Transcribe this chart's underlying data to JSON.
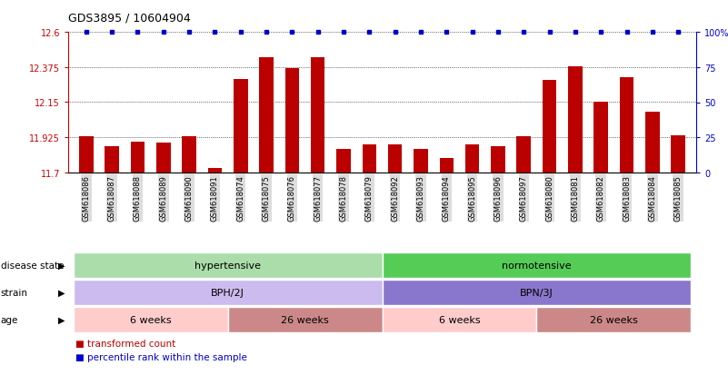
{
  "title": "GDS3895 / 10604904",
  "samples": [
    "GSM618086",
    "GSM618087",
    "GSM618088",
    "GSM618089",
    "GSM618090",
    "GSM618091",
    "GSM618074",
    "GSM618075",
    "GSM618076",
    "GSM618077",
    "GSM618078",
    "GSM618079",
    "GSM618092",
    "GSM618093",
    "GSM618094",
    "GSM618095",
    "GSM618096",
    "GSM618097",
    "GSM618080",
    "GSM618081",
    "GSM618082",
    "GSM618083",
    "GSM618084",
    "GSM618085"
  ],
  "bar_values": [
    11.93,
    11.87,
    11.9,
    11.89,
    11.93,
    11.73,
    12.3,
    12.44,
    12.37,
    12.44,
    11.85,
    11.88,
    11.88,
    11.85,
    11.79,
    11.88,
    11.87,
    11.93,
    12.29,
    12.38,
    12.15,
    12.31,
    12.09,
    11.94
  ],
  "bar_color": "#bb0000",
  "percentile_color": "#0000cc",
  "ylim_left": [
    11.7,
    12.6
  ],
  "yticks_left": [
    11.7,
    11.925,
    12.15,
    12.375,
    12.6
  ],
  "ytick_labels_left": [
    "11.7",
    "11.925",
    "12.15",
    "12.375",
    "12.6"
  ],
  "ylim_right": [
    0,
    100
  ],
  "yticks_right": [
    0,
    25,
    50,
    75,
    100
  ],
  "ytick_labels_right": [
    "0",
    "25",
    "50",
    "75",
    "100%"
  ],
  "disease_state_groups": [
    {
      "label": "hypertensive",
      "start": 0,
      "end": 11,
      "color": "#aaddaa"
    },
    {
      "label": "normotensive",
      "start": 12,
      "end": 23,
      "color": "#55cc55"
    }
  ],
  "strain_groups": [
    {
      "label": "BPH/2J",
      "start": 0,
      "end": 11,
      "color": "#ccbbee"
    },
    {
      "label": "BPN/3J",
      "start": 12,
      "end": 23,
      "color": "#8877cc"
    }
  ],
  "age_groups": [
    {
      "label": "6 weeks",
      "start": 0,
      "end": 5,
      "color": "#ffcccc"
    },
    {
      "label": "26 weeks",
      "start": 6,
      "end": 11,
      "color": "#cc8888"
    },
    {
      "label": "6 weeks",
      "start": 12,
      "end": 17,
      "color": "#ffcccc"
    },
    {
      "label": "26 weeks",
      "start": 18,
      "end": 23,
      "color": "#cc8888"
    }
  ],
  "row_labels": [
    "disease state",
    "strain",
    "age"
  ],
  "legend_items": [
    {
      "label": "transformed count",
      "color": "#bb0000"
    },
    {
      "label": "percentile rank within the sample",
      "color": "#0000cc"
    }
  ],
  "axis_color_left": "#cc0000",
  "axis_color_right": "#0000cc",
  "tick_label_bg": "#dddddd"
}
